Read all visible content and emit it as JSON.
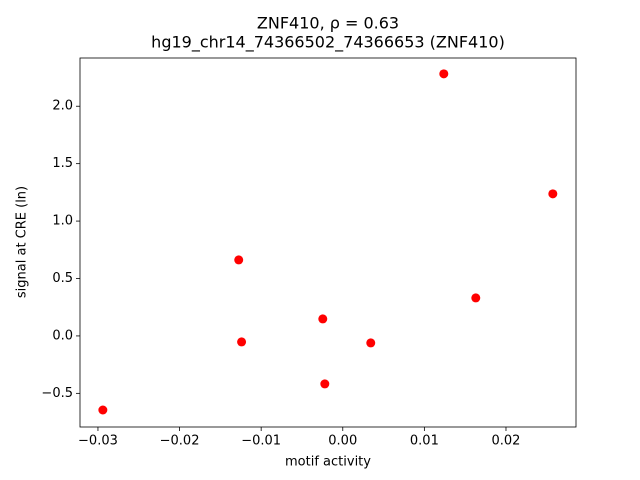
{
  "chart_data": {
    "type": "scatter",
    "title": "ZNF410, ρ = 0.63",
    "subtitle": "hg19_chr14_74366502_74366653 (ZNF410)",
    "x_label": "motif activity",
    "y_label": "signal at CRE (ln)",
    "color": "#ff0000",
    "x": [
      -0.0294,
      -0.01275,
      -0.0124,
      -0.00245,
      -0.0022,
      0.00343,
      0.01238,
      0.0163,
      0.02574
    ],
    "values": [
      -0.645,
      0.662,
      -0.052,
      0.148,
      -0.418,
      -0.061,
      2.282,
      0.331,
      1.237
    ],
    "xlim": [
      -0.0322,
      0.02858
    ],
    "ylim": [
      -0.793,
      2.42
    ],
    "xticks": [
      {
        "value": -0.03,
        "label": "−0.03"
      },
      {
        "value": -0.02,
        "label": "−0.02"
      },
      {
        "value": -0.01,
        "label": "−0.01"
      },
      {
        "value": 0,
        "label": "0.00"
      },
      {
        "value": 0.01,
        "label": "0.01"
      },
      {
        "value": 0.02,
        "label": "0.02"
      }
    ],
    "yticks": [
      {
        "value": -0.5,
        "label": "−0.5"
      },
      {
        "value": 0,
        "label": "0.0"
      },
      {
        "value": 0.5,
        "label": "0.5"
      },
      {
        "value": 1,
        "label": "1.0"
      },
      {
        "value": 1.5,
        "label": "1.5"
      },
      {
        "value": 2,
        "label": "2.0"
      }
    ],
    "grid": false
  }
}
